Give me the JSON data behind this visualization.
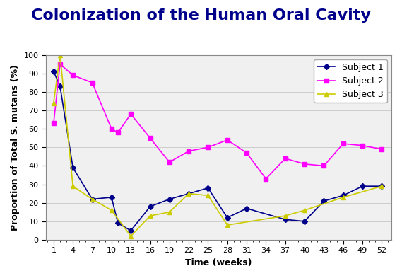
{
  "title": "Colonization of the Human Oral Cavity",
  "xlabel": "Time (weeks)",
  "ylabel": "Proportion of Total S. mutans (%)",
  "xlim": [
    -0.2,
    53.5
  ],
  "ylim": [
    0,
    100
  ],
  "xticks": [
    1,
    4,
    7,
    10,
    13,
    16,
    19,
    22,
    25,
    28,
    31,
    34,
    37,
    40,
    43,
    46,
    49,
    52
  ],
  "yticks": [
    0,
    10,
    20,
    30,
    40,
    50,
    60,
    70,
    80,
    90,
    100
  ],
  "subject1": {
    "label": "Subject 1",
    "color": "#00008B",
    "marker": "D",
    "markersize": 4,
    "linewidth": 1.2,
    "x": [
      1,
      2,
      4,
      7,
      10,
      11,
      13,
      16,
      19,
      22,
      25,
      28,
      31,
      37,
      40,
      43,
      46,
      49,
      52
    ],
    "y": [
      91,
      83,
      39,
      22,
      23,
      9,
      5,
      18,
      22,
      25,
      28,
      12,
      17,
      11,
      10,
      21,
      24,
      29,
      29
    ]
  },
  "subject2": {
    "label": "Subject 2",
    "color": "#FF00FF",
    "marker": "s",
    "markersize": 4,
    "linewidth": 1.2,
    "x": [
      1,
      2,
      4,
      7,
      10,
      11,
      13,
      16,
      19,
      22,
      25,
      28,
      31,
      34,
      37,
      40,
      43,
      46,
      49,
      52
    ],
    "y": [
      63,
      95,
      89,
      85,
      60,
      58,
      68,
      55,
      42,
      48,
      50,
      54,
      47,
      33,
      44,
      41,
      40,
      52,
      51,
      49
    ]
  },
  "subject3": {
    "label": "Subject 3",
    "color": "#CCCC00",
    "marker": "^",
    "markersize": 5,
    "linewidth": 1.2,
    "x": [
      1,
      2,
      4,
      7,
      10,
      13,
      16,
      19,
      22,
      25,
      28,
      37,
      40,
      46,
      52
    ],
    "y": [
      74,
      100,
      29,
      22,
      16,
      2,
      13,
      15,
      25,
      24,
      8,
      13,
      16,
      23,
      29
    ]
  },
  "title_fontsize": 16,
  "title_color": "#00008B",
  "axis_label_fontsize": 9,
  "tick_fontsize": 8,
  "legend_fontsize": 9,
  "background_color": "#ffffff",
  "plot_bg_color": "#f0f0f0",
  "grid_color": "#cccccc"
}
